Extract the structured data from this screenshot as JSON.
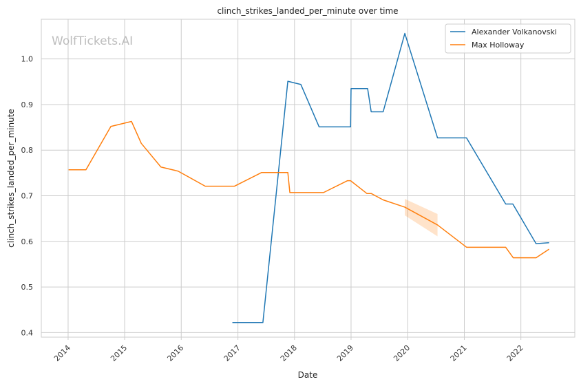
{
  "chart_data": {
    "type": "line",
    "title": "clinch_strikes_landed_per_minute over time",
    "xlabel": "Date",
    "ylabel": "clinch_strikes_landed_per_minute",
    "watermark": "WolfTickets.AI",
    "x_ticks": [
      "2014",
      "2015",
      "2016",
      "2017",
      "2018",
      "2019",
      "2020",
      "2021",
      "2022"
    ],
    "y_ticks": [
      "0.4",
      "0.5",
      "0.6",
      "0.7",
      "0.8",
      "0.9",
      "1.0"
    ],
    "xlim": [
      "2013-07-12",
      "2022-12-15"
    ],
    "ylim": [
      0.39,
      1.087
    ],
    "grid": true,
    "legend_position": "top-right",
    "series": [
      {
        "name": "Alexander Volkanovski",
        "color": "#1f77b4",
        "points": [
          [
            "2016-11-26",
            0.422
          ],
          [
            "2017-06-11",
            0.422
          ],
          [
            "2017-11-19",
            0.951
          ],
          [
            "2018-02-11",
            0.944
          ],
          [
            "2018-06-09",
            0.851
          ],
          [
            "2018-12-29",
            0.851
          ],
          [
            "2019-01-01",
            0.935
          ],
          [
            "2019-04-18",
            0.935
          ],
          [
            "2019-05-11",
            0.884
          ],
          [
            "2019-07-27",
            0.884
          ],
          [
            "2019-12-14",
            1.056
          ],
          [
            "2020-07-12",
            0.827
          ],
          [
            "2021-01-15",
            0.827
          ],
          [
            "2021-09-25",
            0.682
          ],
          [
            "2021-11-10",
            0.682
          ],
          [
            "2022-04-09",
            0.595
          ],
          [
            "2022-07-02",
            0.597
          ]
        ]
      },
      {
        "name": "Max Holloway",
        "color": "#ff7f0e",
        "points": [
          [
            "2014-01-04",
            0.757
          ],
          [
            "2014-04-26",
            0.757
          ],
          [
            "2014-10-04",
            0.852
          ],
          [
            "2015-02-14",
            0.863
          ],
          [
            "2015-04-18",
            0.815
          ],
          [
            "2015-08-23",
            0.763
          ],
          [
            "2015-12-12",
            0.754
          ],
          [
            "2016-06-04",
            0.721
          ],
          [
            "2016-12-10",
            0.721
          ],
          [
            "2017-06-03",
            0.751
          ],
          [
            "2017-11-19",
            0.751
          ],
          [
            "2017-12-02",
            0.707
          ],
          [
            "2018-07-07",
            0.707
          ],
          [
            "2018-12-08",
            0.733
          ],
          [
            "2018-12-29",
            0.733
          ],
          [
            "2019-04-13",
            0.705
          ],
          [
            "2019-05-11",
            0.705
          ],
          [
            "2019-07-27",
            0.691
          ],
          [
            "2019-12-14",
            0.675
          ],
          [
            "2020-07-12",
            0.636
          ],
          [
            "2021-01-16",
            0.587
          ],
          [
            "2021-09-25",
            0.587
          ],
          [
            "2021-11-13",
            0.564
          ],
          [
            "2022-04-09",
            0.564
          ],
          [
            "2022-07-02",
            0.583
          ]
        ],
        "band": [
          [
            "2019-12-14",
            0.657,
            0.693
          ],
          [
            "2020-07-12",
            0.611,
            0.66
          ]
        ]
      }
    ]
  }
}
